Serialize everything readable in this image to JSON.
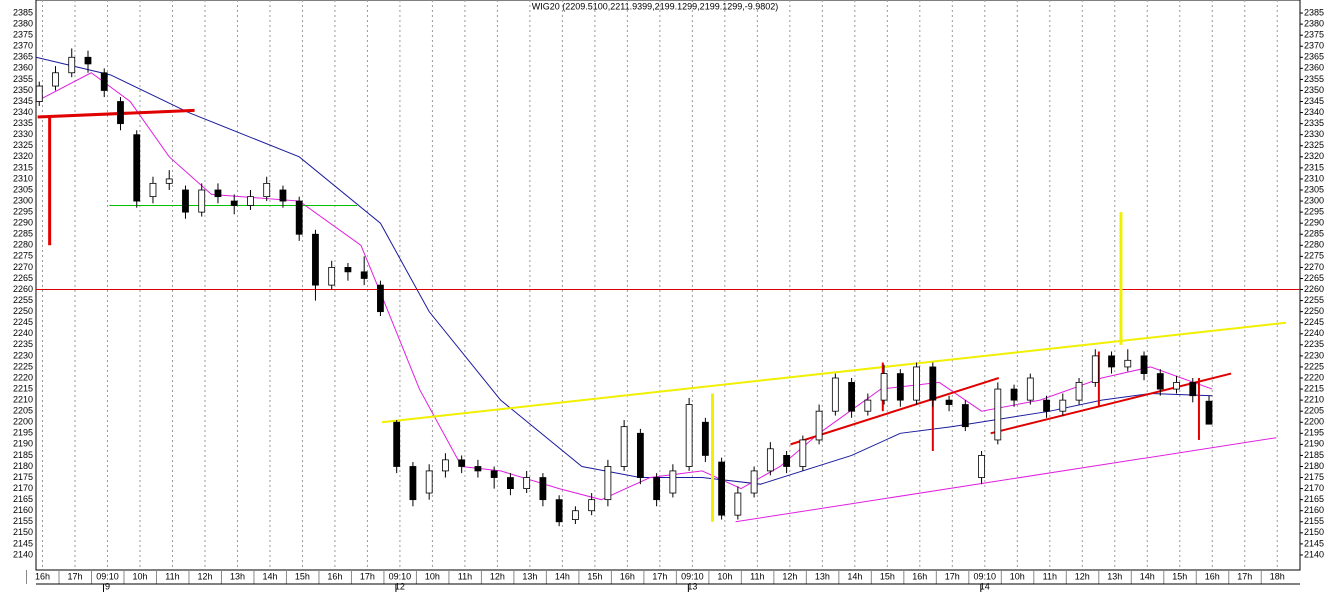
{
  "chart_data": {
    "type": "candlestick",
    "title": "WIG20 (2209.5100,2211.9399,2199.1299,2199.1299,-9.9802)",
    "x": [
      -0.1,
      0.4,
      0.9,
      1.4,
      1.9,
      2.4,
      2.9,
      3.4,
      3.9,
      4.4,
      4.9,
      5.4,
      5.9,
      6.4,
      6.9,
      7.4,
      7.9,
      8.4,
      8.9,
      9.4,
      9.9,
      10.4,
      10.9,
      11.4,
      11.9,
      12.4,
      12.9,
      13.4,
      13.9,
      14.4,
      14.9,
      15.4,
      15.9,
      16.4,
      16.9,
      17.4,
      17.9,
      18.4,
      18.9,
      19.4,
      19.9,
      20.4,
      20.9,
      21.4,
      21.9,
      22.4,
      22.9,
      23.4,
      23.9,
      24.4,
      24.9,
      25.4,
      25.9,
      26.4,
      26.9,
      27.4,
      27.9,
      28.4,
      28.9,
      29.4,
      29.9,
      30.4,
      30.9,
      31.4,
      31.9,
      32.4,
      32.9,
      33.4,
      33.9,
      34.4,
      34.9,
      35.4,
      35.9
    ],
    "open": [
      2345,
      2352,
      2358,
      2365,
      2358,
      2345,
      2330,
      2302,
      2308,
      2305,
      2295,
      2305,
      2300,
      2298,
      2302,
      2305,
      2300,
      2285,
      2262,
      2270,
      2268,
      2262,
      2200,
      2180,
      2168,
      2178,
      2183,
      2180,
      2178,
      2175,
      2170,
      2175,
      2165,
      2156,
      2160,
      2165,
      2180,
      2195,
      2175,
      2168,
      2180,
      2200,
      2182,
      2158,
      2168,
      2178,
      2185,
      2180,
      2192,
      2205,
      2218,
      2205,
      2210,
      2222,
      2210,
      2225,
      2210,
      2208,
      2175,
      2192,
      2215,
      2210,
      2210,
      2205,
      2210,
      2218,
      2230,
      2225,
      2230,
      2222,
      2215,
      2218,
      2209.51
    ],
    "high": [
      2354,
      2361,
      2369,
      2368,
      2360,
      2347,
      2332,
      2311,
      2314,
      2307,
      2308,
      2308,
      2303,
      2305,
      2311,
      2307,
      2302,
      2287,
      2273,
      2272,
      2275,
      2264,
      2201,
      2182,
      2181,
      2186,
      2185,
      2183,
      2180,
      2177,
      2178,
      2177,
      2167,
      2162,
      2168,
      2183,
      2201,
      2197,
      2177,
      2181,
      2211,
      2202,
      2184,
      2171,
      2180,
      2191,
      2187,
      2194,
      2208,
      2222,
      2220,
      2213,
      2226,
      2224,
      2227,
      2227,
      2212,
      2210,
      2187,
      2218,
      2217,
      2222,
      2212,
      2213,
      2220,
      2233,
      2232,
      2233,
      2232,
      2224,
      2221,
      2220,
      2211.9399
    ],
    "low": [
      2343,
      2350,
      2356,
      2358,
      2347,
      2332,
      2297,
      2299,
      2305,
      2292,
      2293,
      2299,
      2294,
      2296,
      2300,
      2297,
      2282,
      2255,
      2260,
      2264,
      2262,
      2248,
      2177,
      2162,
      2165,
      2175,
      2177,
      2175,
      2170,
      2167,
      2168,
      2162,
      2153,
      2154,
      2158,
      2162,
      2178,
      2172,
      2162,
      2166,
      2178,
      2182,
      2156,
      2156,
      2166,
      2176,
      2177,
      2178,
      2190,
      2203,
      2202,
      2203,
      2208,
      2207,
      2208,
      2207,
      2205,
      2196,
      2172,
      2190,
      2207,
      2208,
      2202,
      2203,
      2208,
      2216,
      2222,
      2223,
      2219,
      2212,
      2213,
      2209,
      2199.1299
    ],
    "close": [
      2352,
      2358,
      2365,
      2362,
      2350,
      2335,
      2300,
      2308,
      2310,
      2295,
      2305,
      2302,
      2298,
      2302,
      2308,
      2300,
      2285,
      2262,
      2270,
      2268,
      2265,
      2250,
      2180,
      2165,
      2178,
      2183,
      2180,
      2178,
      2175,
      2170,
      2175,
      2165,
      2155,
      2160,
      2165,
      2180,
      2198,
      2175,
      2165,
      2178,
      2208,
      2185,
      2158,
      2168,
      2178,
      2188,
      2180,
      2192,
      2205,
      2220,
      2205,
      2210,
      2222,
      2210,
      2225,
      2210,
      2208,
      2198,
      2185,
      2215,
      2210,
      2220,
      2205,
      2210,
      2218,
      2230,
      2225,
      2228,
      2222,
      2215,
      2218,
      2212,
      2199.1299
    ],
    "up_color": "#ffffff",
    "down_color": "#000000",
    "lines": [
      {
        "color": "#1a1a9e",
        "x": [
          -0.2,
          2.1,
          4.5,
          7.9,
          10.4,
          11.9,
          14.1,
          16.6,
          18.4,
          20.3,
          22.1,
          24.9,
          26.4,
          28.0,
          31.0,
          32.6,
          34.1,
          36.0
        ],
        "values": [
          2365,
          2357,
          2340,
          2320,
          2290,
          2250,
          2210,
          2180,
          2175,
          2175,
          2172,
          2185,
          2195,
          2198,
          2205,
          2210,
          2213,
          2212
        ]
      },
      {
        "color": "#e020e0",
        "x": [
          -0.2,
          1.5,
          2.7,
          3.9,
          5.2,
          7.9,
          9.8,
          10.5,
          11.6,
          12.9,
          14.1,
          15.9,
          17.2,
          18.7,
          20.3,
          21.5,
          22.7,
          23.9,
          25.8,
          27.6,
          28.9,
          30.7,
          32.6,
          34.1,
          36.0
        ],
        "values": [
          2345,
          2358,
          2345,
          2320,
          2303,
          2300,
          2280,
          2255,
          2215,
          2180,
          2178,
          2170,
          2165,
          2175,
          2178,
          2170,
          2180,
          2195,
          2215,
          2218,
          2205,
          2210,
          2220,
          2225,
          2215
        ]
      }
    ],
    "drawings": [
      {
        "color": "#e00000",
        "width": 3,
        "x": [
          -0.15,
          4.68
        ],
        "y": [
          2338,
          2341
        ]
      },
      {
        "color": "#e00000",
        "width": 3,
        "x": [
          0.22,
          0.22
        ],
        "y": [
          2338,
          2280
        ]
      },
      {
        "color": "#00c000",
        "width": 1,
        "x": [
          2.06,
          9.68
        ],
        "y": [
          2298,
          2298
        ]
      },
      {
        "color": "#e00000",
        "width": 1,
        "x": [
          -0.2,
          38.7
        ],
        "y": [
          2260,
          2260
        ]
      },
      {
        "color": "#f0f000",
        "width": 2,
        "x": [
          10.45,
          38.27
        ],
        "y": [
          2200,
          2245
        ]
      },
      {
        "color": "#f0f000",
        "width": 3,
        "x": [
          20.62,
          20.62
        ],
        "y": [
          2213,
          2155
        ]
      },
      {
        "color": "#f0f000",
        "width": 3,
        "x": [
          33.19,
          33.19
        ],
        "y": [
          2295,
          2235
        ]
      },
      {
        "color": "#e020e0",
        "width": 1,
        "x": [
          21.33,
          37.97
        ],
        "y": [
          2155,
          2193
        ]
      },
      {
        "color": "#e00000",
        "width": 2,
        "x": [
          23.02,
          29.43
        ],
        "y": [
          2190,
          2220
        ]
      },
      {
        "color": "#e00000",
        "width": 2,
        "x": [
          25.86,
          25.86
        ],
        "y": [
          2227,
          2205
        ]
      },
      {
        "color": "#e00000",
        "width": 2,
        "x": [
          27.4,
          27.4
        ],
        "y": [
          2222,
          2187
        ]
      },
      {
        "color": "#e00000",
        "width": 2,
        "x": [
          32.51,
          32.51
        ],
        "y": [
          2232,
          2207
        ]
      },
      {
        "color": "#e00000",
        "width": 2,
        "x": [
          35.59,
          35.59
        ],
        "y": [
          2220,
          2192
        ]
      },
      {
        "color": "#e00000",
        "width": 2,
        "x": [
          29.18,
          36.58
        ],
        "y": [
          2195,
          2222
        ]
      }
    ],
    "xlim": [
      -0.2,
      38.7
    ],
    "ylim": [
      2133.2,
      2390.9
    ],
    "xticks": [
      {
        "value": 0,
        "label": "16h"
      },
      {
        "value": 1,
        "label": "17h"
      },
      {
        "value": 2,
        "label": "09:10"
      },
      {
        "value": 3,
        "label": "10h"
      },
      {
        "value": 4,
        "label": "11h"
      },
      {
        "value": 5,
        "label": "12h"
      },
      {
        "value": 6,
        "label": "13h"
      },
      {
        "value": 7,
        "label": "14h"
      },
      {
        "value": 8,
        "label": "15h"
      },
      {
        "value": 9,
        "label": "16h"
      },
      {
        "value": 10,
        "label": "17h"
      },
      {
        "value": 11,
        "label": "09:10"
      },
      {
        "value": 12,
        "label": "10h"
      },
      {
        "value": 13,
        "label": "11h"
      },
      {
        "value": 14,
        "label": "12h"
      },
      {
        "value": 15,
        "label": "13h"
      },
      {
        "value": 16,
        "label": "14h"
      },
      {
        "value": 17,
        "label": "15h"
      },
      {
        "value": 18,
        "label": "16h"
      },
      {
        "value": 19,
        "label": "17h"
      },
      {
        "value": 20,
        "label": "09:10"
      },
      {
        "value": 21,
        "label": "10h"
      },
      {
        "value": 22,
        "label": "11h"
      },
      {
        "value": 23,
        "label": "12h"
      },
      {
        "value": 24,
        "label": "13h"
      },
      {
        "value": 25,
        "label": "14h"
      },
      {
        "value": 26,
        "label": "15h"
      },
      {
        "value": 27,
        "label": "16h"
      },
      {
        "value": 28,
        "label": "17h"
      },
      {
        "value": 29,
        "label": "09:10"
      },
      {
        "value": 30,
        "label": "10h"
      },
      {
        "value": 31,
        "label": "11h"
      },
      {
        "value": 32,
        "label": "12h"
      },
      {
        "value": 33,
        "label": "13h"
      },
      {
        "value": 34,
        "label": "14h"
      },
      {
        "value": 35,
        "label": "15h"
      },
      {
        "value": 36,
        "label": "16h"
      },
      {
        "value": 37,
        "label": "17h"
      },
      {
        "value": 38,
        "label": "18h"
      }
    ],
    "date_labels": [
      {
        "value": 2,
        "label": "9"
      },
      {
        "value": 11,
        "label": "12"
      },
      {
        "value": 20,
        "label": "13"
      },
      {
        "value": 29,
        "label": "14"
      }
    ],
    "yticks": [
      2140,
      2145,
      2150,
      2155,
      2160,
      2165,
      2170,
      2175,
      2180,
      2185,
      2190,
      2195,
      2200,
      2205,
      2210,
      2215,
      2220,
      2225,
      2230,
      2235,
      2240,
      2245,
      2250,
      2255,
      2260,
      2265,
      2270,
      2275,
      2280,
      2285,
      2290,
      2295,
      2300,
      2305,
      2310,
      2315,
      2320,
      2325,
      2330,
      2335,
      2340,
      2345,
      2350,
      2355,
      2360,
      2365,
      2370,
      2375,
      2380,
      2385
    ],
    "grid": "x"
  }
}
